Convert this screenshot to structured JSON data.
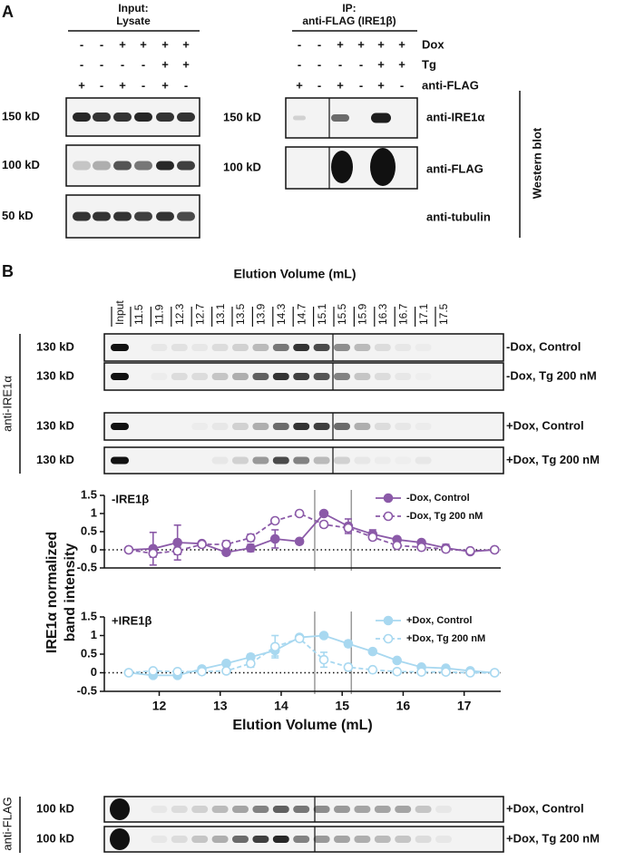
{
  "panel_a": {
    "letter": "A",
    "input": {
      "title": [
        "Input:",
        "Lysate"
      ],
      "rows": [
        [
          "-",
          "-",
          "+",
          "+",
          "+",
          "+"
        ],
        [
          "-",
          "-",
          "-",
          "-",
          "+",
          "+"
        ],
        [
          "+",
          "-",
          "+",
          "-",
          "+",
          "-"
        ]
      ],
      "markers": [
        "150 kD",
        "100 kD",
        "50 kD"
      ]
    },
    "ip": {
      "title": [
        "IP:",
        "anti-FLAG (IRE1β)"
      ],
      "rows": [
        [
          "-",
          "-",
          "+",
          "+",
          "+",
          "+"
        ],
        [
          "-",
          "-",
          "-",
          "-",
          "+",
          "+"
        ],
        [
          "+",
          "-",
          "+",
          "-",
          "+",
          "-"
        ]
      ],
      "markers": [
        "150 kD",
        "100 kD"
      ]
    },
    "row_labels": [
      "Dox",
      "Tg",
      "anti-FLAG"
    ],
    "blot_labels": [
      "anti-IRE1α",
      "anti-FLAG",
      "anti-tubulin"
    ],
    "side_label": "Western blot"
  },
  "panel_b": {
    "letter": "B",
    "lane_title": "Elution Volume (mL)",
    "lanes": [
      "Input",
      "11.5",
      "11.9",
      "12.3",
      "12.7",
      "13.1",
      "13.5",
      "13.9",
      "14.3",
      "14.7",
      "15.1",
      "15.5",
      "15.9",
      "16.3",
      "16.7",
      "17.1",
      "17.5"
    ],
    "ire_antibody": "anti-IRE1α",
    "ire_blots": [
      {
        "marker": "130 kD",
        "condition": "-Dox, Control"
      },
      {
        "marker": "130 kD",
        "condition": "-Dox, Tg 200 nM"
      },
      {
        "marker": "130 kD",
        "condition": "+Dox, Control"
      },
      {
        "marker": "130 kD",
        "condition": "+Dox, Tg 200 nM"
      }
    ],
    "y_label": [
      "IRE1α normalized",
      "band intensity"
    ],
    "flag_antibody": "anti-FLAG",
    "flag_blots": [
      {
        "marker": "100 kD",
        "condition": "+Dox, Control"
      },
      {
        "marker": "100 kD",
        "condition": "+Dox, Tg 200 nM"
      }
    ]
  },
  "chart_data": [
    {
      "type": "line",
      "title": "-IRE1β",
      "x": [
        11.5,
        11.9,
        12.3,
        12.7,
        13.1,
        13.5,
        13.9,
        14.3,
        14.7,
        15.1,
        15.5,
        15.9,
        16.3,
        16.7,
        17.1,
        17.5
      ],
      "series": [
        {
          "name": "-Dox, Control",
          "color": "#8b5aa8",
          "marker": "filled",
          "line_style": "solid",
          "values": [
            0,
            0.03,
            0.2,
            0.17,
            -0.07,
            0.05,
            0.3,
            0.23,
            1.0,
            0.65,
            0.43,
            0.28,
            0.2,
            0.05,
            -0.05,
            0
          ],
          "errors": [
            0,
            0.45,
            0.48,
            0.05,
            0.03,
            0.1,
            0.25,
            0.05,
            0.03,
            0.2,
            0.12,
            0.05,
            0.05,
            0.1,
            0.03,
            0
          ]
        },
        {
          "name": "-Dox, Tg 200 nM",
          "color": "#8b5aa8",
          "marker": "open",
          "line_style": "dashed",
          "values": [
            0,
            -0.1,
            -0.03,
            0.15,
            0.15,
            0.33,
            0.8,
            1.0,
            0.7,
            0.6,
            0.35,
            0.12,
            0.07,
            0.02,
            -0.03,
            0
          ],
          "errors": [
            0,
            0.1,
            0.1,
            0.05,
            0.1,
            0.1,
            0.05,
            0.03,
            0.08,
            0.1,
            0.08,
            0.05,
            0.03,
            0.03,
            0.03,
            0
          ]
        }
      ],
      "xlim": [
        11.1,
        17.6
      ],
      "ylim": [
        -0.5,
        1.5
      ],
      "yticks": [
        -0.5,
        0.0,
        0.5,
        1.0,
        1.5
      ],
      "reference_lines": [
        14.55,
        15.15
      ]
    },
    {
      "type": "line",
      "title": "+IRE1β",
      "x": [
        11.5,
        11.9,
        12.3,
        12.7,
        13.1,
        13.5,
        13.9,
        14.3,
        14.7,
        15.1,
        15.5,
        15.9,
        16.3,
        16.7,
        17.1,
        17.5
      ],
      "series": [
        {
          "name": "+Dox, Control",
          "color": "#a8d8f0",
          "marker": "filled",
          "line_style": "solid",
          "values": [
            0,
            -0.07,
            -0.07,
            0.1,
            0.25,
            0.42,
            0.6,
            0.95,
            1.0,
            0.78,
            0.57,
            0.33,
            0.15,
            0.12,
            0.05,
            0
          ],
          "errors": [
            0,
            0.03,
            0.03,
            0.03,
            0.03,
            0.08,
            0.15,
            0.05,
            0.03,
            0.08,
            0.03,
            0.03,
            0.03,
            0.03,
            0.03,
            0
          ]
        },
        {
          "name": "+Dox, Tg 200 nM",
          "color": "#a8d8f0",
          "marker": "open",
          "line_style": "dashed",
          "values": [
            0,
            0.05,
            0.03,
            0.03,
            0.05,
            0.25,
            0.7,
            0.92,
            0.35,
            0.15,
            0.08,
            0.03,
            0.02,
            0.02,
            0,
            0
          ],
          "errors": [
            0,
            0.03,
            0.03,
            0.03,
            0.03,
            0.1,
            0.3,
            0.05,
            0.2,
            0.08,
            0.03,
            0.03,
            0.03,
            0.03,
            0.03,
            0
          ]
        }
      ],
      "xlim": [
        11.1,
        17.6
      ],
      "xticks": [
        12,
        13,
        14,
        15,
        16,
        17
      ],
      "x_label": "Elution Volume (mL)",
      "ylim": [
        -0.5,
        1.5
      ],
      "yticks": [
        -0.5,
        0.0,
        0.5,
        1.0,
        1.5
      ],
      "reference_lines": [
        14.55,
        15.15
      ]
    }
  ]
}
